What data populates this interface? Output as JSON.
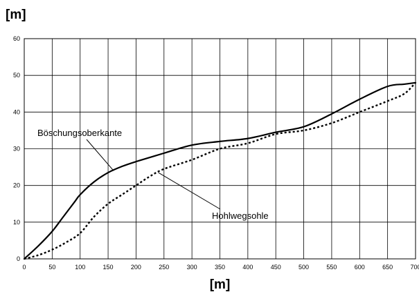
{
  "chart_data": {
    "type": "line",
    "xlabel": "[m]",
    "ylabel": "[m]",
    "xlim": [
      0,
      700
    ],
    "ylim": [
      0,
      60
    ],
    "x_ticks": [
      "0",
      "50",
      "100",
      "150",
      "200",
      "250",
      "300",
      "350",
      "400",
      "450",
      "500",
      "550",
      "600",
      "650",
      "700"
    ],
    "y_ticks": [
      "0",
      "10",
      "20",
      "30",
      "40",
      "50",
      "60"
    ],
    "grid": true,
    "series": [
      {
        "name": "Böschungsoberkante",
        "style": "solid",
        "color": "#000000",
        "x": [
          0,
          25,
          50,
          70,
          90,
          100,
          125,
          150,
          175,
          200,
          250,
          300,
          350,
          400,
          450,
          500,
          550,
          600,
          650,
          680,
          700
        ],
        "y": [
          0,
          3.5,
          7.5,
          11.5,
          15.5,
          17.5,
          21,
          23.5,
          25.2,
          26.5,
          28.8,
          31,
          32,
          32.8,
          34.5,
          36,
          39.5,
          43.5,
          47,
          47.6,
          48
        ]
      },
      {
        "name": "Hohlwegsohle",
        "style": "dotted",
        "color": "#000000",
        "x": [
          0,
          25,
          50,
          75,
          100,
          125,
          150,
          175,
          200,
          225,
          250,
          300,
          350,
          400,
          450,
          500,
          550,
          600,
          650,
          680,
          700
        ],
        "y": [
          0,
          1,
          2.5,
          4.5,
          7,
          11.5,
          15,
          17.5,
          20,
          22.5,
          24.5,
          27,
          30,
          31.5,
          34,
          35,
          37,
          40,
          43,
          45,
          48
        ]
      }
    ],
    "annotations": [
      {
        "text": "Böschungsoberkante",
        "points_to": {
          "x": 160,
          "y": 24
        }
      },
      {
        "text": "Hohlwegsohle",
        "points_to": {
          "x": 240,
          "y": 23.5
        }
      }
    ]
  }
}
